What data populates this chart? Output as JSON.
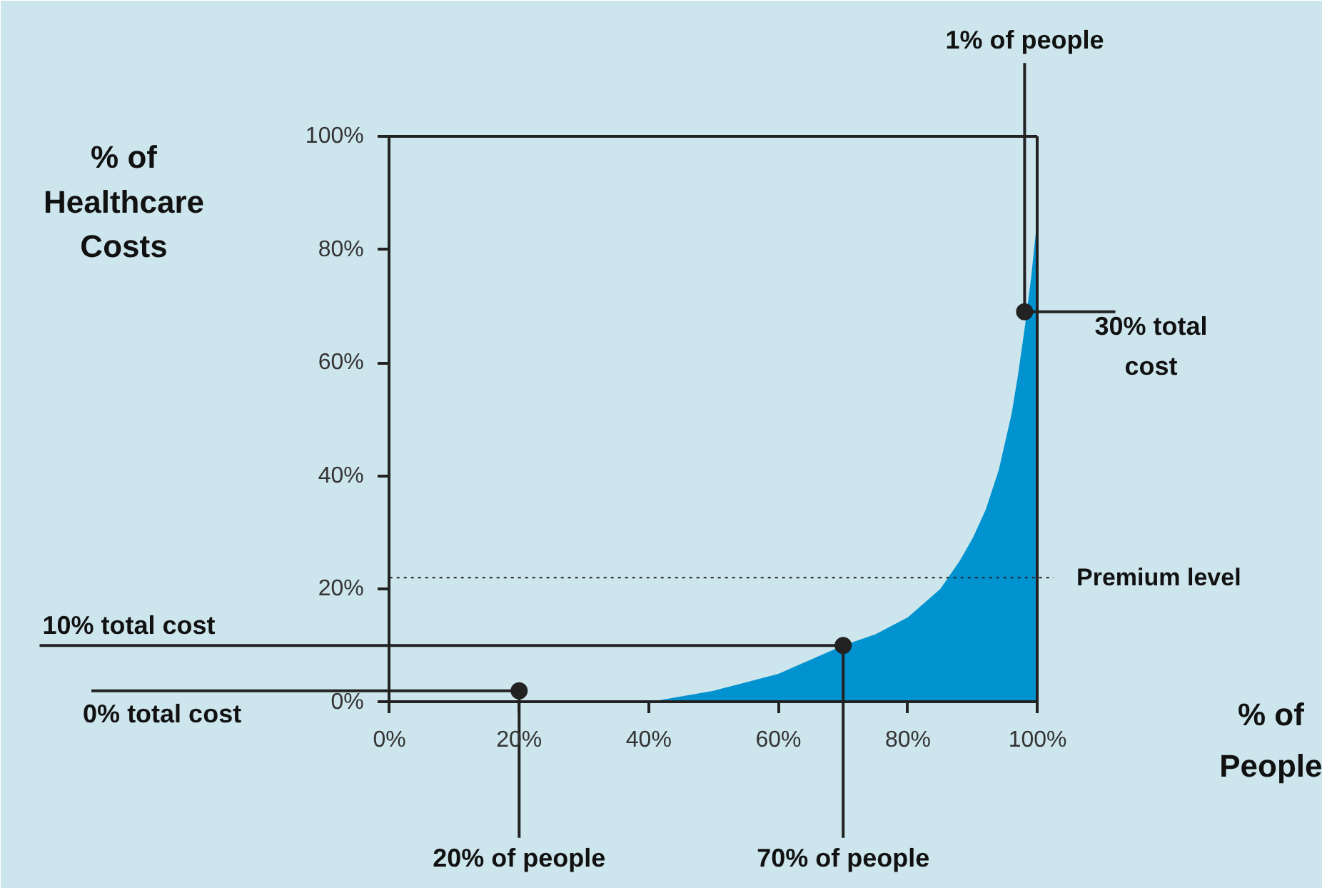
{
  "chart_data": {
    "type": "area",
    "xlabel": "% of People",
    "ylabel": "% of Healthcare Costs",
    "xlim": [
      0,
      100
    ],
    "ylim": [
      0,
      100
    ],
    "xticks": [
      {
        "value": 0,
        "label": "0%"
      },
      {
        "value": 20,
        "label": "20%"
      },
      {
        "value": 40,
        "label": "40%"
      },
      {
        "value": 60,
        "label": "60%"
      },
      {
        "value": 80,
        "label": "80%"
      },
      {
        "value": 100,
        "label": "100%"
      }
    ],
    "yticks": [
      {
        "value": 0,
        "label": "0%"
      },
      {
        "value": 20,
        "label": "20%"
      },
      {
        "value": 40,
        "label": "40%"
      },
      {
        "value": 60,
        "label": "60%"
      },
      {
        "value": 80,
        "label": "80%"
      },
      {
        "value": 100,
        "label": "100%"
      }
    ],
    "series": [
      {
        "color": "#0093d0",
        "x": [
          40,
          50,
          60,
          70,
          75,
          80,
          85,
          88,
          90,
          92,
          94,
          96,
          97,
          98,
          99,
          100
        ],
        "values": [
          0,
          2,
          5,
          10,
          12,
          15,
          20,
          25,
          29,
          34,
          41,
          51,
          58,
          66,
          75,
          86
        ]
      },
      {
        "type": "scatter",
        "color": "#222222",
        "marker": "circle",
        "x": [
          20,
          70,
          98
        ],
        "values": [
          2,
          10,
          69
        ]
      }
    ],
    "ref_lines": [
      {
        "axis": "y",
        "value": 22,
        "label": "Premium level",
        "line_style": "dotted",
        "color": "#222222"
      }
    ],
    "annotations": [
      {
        "text": "1% of people",
        "x": 98,
        "y": 69
      },
      {
        "text": "30% total cost",
        "x": 98,
        "y": 69
      },
      {
        "text": "10% total cost",
        "x": 70,
        "y": 10
      },
      {
        "text": "70% of people",
        "x": 70,
        "y": 10
      },
      {
        "text": "0% total cost",
        "x": 20,
        "y": 2
      },
      {
        "text": "20% of people",
        "x": 20,
        "y": 2
      }
    ]
  }
}
